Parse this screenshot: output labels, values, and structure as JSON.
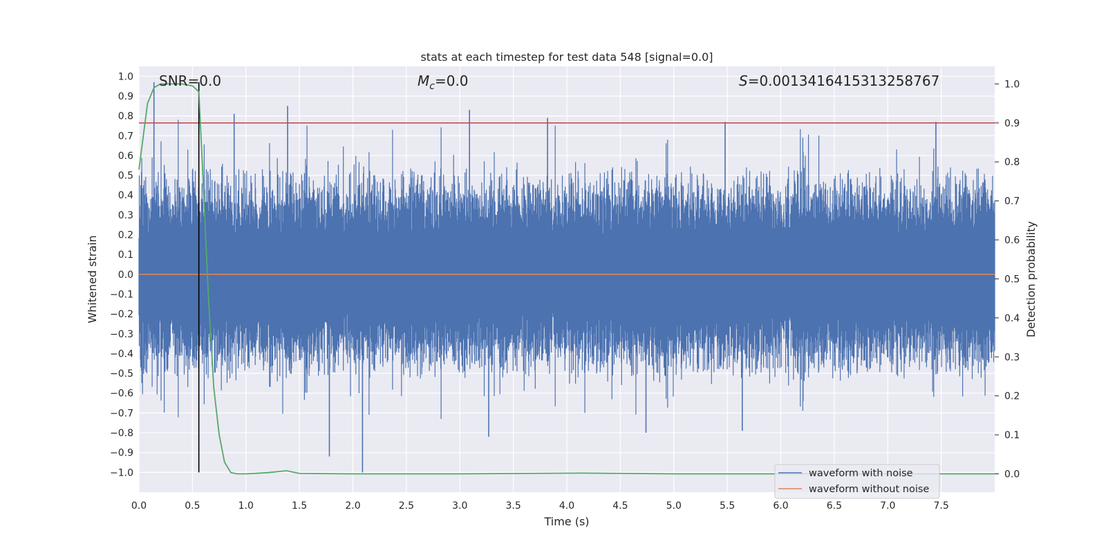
{
  "chart_data": {
    "type": "line",
    "title": "stats at each timestep for test data 548 [signal=0.0]",
    "xlabel": "Time (s)",
    "ylabel": "Whitened strain",
    "y2label": "Detection probability",
    "xlim": [
      0.0,
      8.0
    ],
    "ylim": [
      -1.1,
      1.05
    ],
    "y2lim": [
      -0.047,
      1.045
    ],
    "x_ticks": [
      0.0,
      0.5,
      1.0,
      1.5,
      2.0,
      2.5,
      3.0,
      3.5,
      4.0,
      4.5,
      5.0,
      5.5,
      6.0,
      6.5,
      7.0,
      7.5
    ],
    "x_tick_labels": [
      "0.0",
      "0.5",
      "1.0",
      "1.5",
      "2.0",
      "2.5",
      "3.0",
      "3.5",
      "4.0",
      "4.5",
      "5.0",
      "5.5",
      "6.0",
      "6.5",
      "7.0",
      "7.5"
    ],
    "y_ticks": [
      1.0,
      0.9,
      0.8,
      0.7,
      0.6,
      0.5,
      0.4,
      0.3,
      0.2,
      0.1,
      0.0,
      -0.1,
      -0.2,
      -0.3,
      -0.4,
      -0.5,
      -0.6,
      -0.7,
      -0.8,
      -0.9,
      -1.0
    ],
    "y_tick_labels": [
      "1.0",
      "0.9",
      "0.8",
      "0.7",
      "0.6",
      "0.5",
      "0.4",
      "0.3",
      "0.2",
      "0.1",
      "0.0",
      "−0.1",
      "−0.2",
      "−0.3",
      "−0.4",
      "−0.5",
      "−0.6",
      "−0.7",
      "−0.8",
      "−0.9",
      "−1.0"
    ],
    "y2_ticks": [
      1.0,
      0.9,
      0.8,
      0.7,
      0.6,
      0.5,
      0.4,
      0.3,
      0.2,
      0.1,
      0.0
    ],
    "y2_tick_labels": [
      "1.0",
      "0.9",
      "0.8",
      "0.7",
      "0.6",
      "0.5",
      "0.4",
      "0.3",
      "0.2",
      "0.1",
      "0.0"
    ],
    "grid": true,
    "legend_position": "lower-right",
    "annotations": {
      "snr": "SNR=0.0",
      "mc_symbol": "M",
      "mc_subscript": "c",
      "mc_value": "=0.0",
      "s_symbol": "S",
      "s_value": "=0.0013416415313258767"
    },
    "series": [
      {
        "name": "waveform with noise",
        "color": "#4c72b0",
        "kind": "noise",
        "typical_amplitude": 0.4,
        "max": 0.97,
        "min": -1.0,
        "peaks": [
          {
            "x": 0.14,
            "y": 0.97
          },
          {
            "x": 0.89,
            "y": 0.81
          },
          {
            "x": 1.39,
            "y": 0.85
          },
          {
            "x": 3.09,
            "y": 0.83
          },
          {
            "x": 3.82,
            "y": 0.79
          },
          {
            "x": 5.48,
            "y": 0.77
          },
          {
            "x": 7.45,
            "y": 0.77
          },
          {
            "x": 1.78,
            "y": -0.92
          },
          {
            "x": 2.09,
            "y": -1.0
          },
          {
            "x": 4.74,
            "y": -0.8
          },
          {
            "x": 5.64,
            "y": -0.79
          },
          {
            "x": 3.27,
            "y": -0.82
          }
        ]
      },
      {
        "name": "waveform without noise",
        "color": "#dd8452",
        "x": [
          0.0,
          8.0
        ],
        "y": [
          0.0,
          0.0
        ]
      }
    ],
    "detection_probability": {
      "color": "#55a868",
      "x": [
        0.0,
        0.08,
        0.14,
        0.2,
        0.3,
        0.4,
        0.5,
        0.56,
        0.6,
        0.65,
        0.7,
        0.75,
        0.8,
        0.86,
        0.92,
        1.0,
        1.2,
        1.38,
        1.5,
        2.0,
        3.0,
        4.15,
        5.0,
        6.0,
        7.0,
        8.0
      ],
      "y": [
        0.78,
        0.95,
        0.99,
        1.0,
        1.0,
        1.0,
        0.995,
        0.98,
        0.75,
        0.45,
        0.22,
        0.1,
        0.03,
        0.003,
        0.0,
        0.0,
        0.003,
        0.008,
        0.001,
        0.0,
        0.0,
        0.002,
        0.0,
        0.0,
        0.0,
        0.0
      ]
    },
    "threshold_line": {
      "y2": 0.9,
      "color": "#c44e52"
    },
    "vertical_marker": {
      "x": 0.56,
      "y_from": -1.0,
      "y_to": 0.97,
      "color": "#000000"
    }
  }
}
